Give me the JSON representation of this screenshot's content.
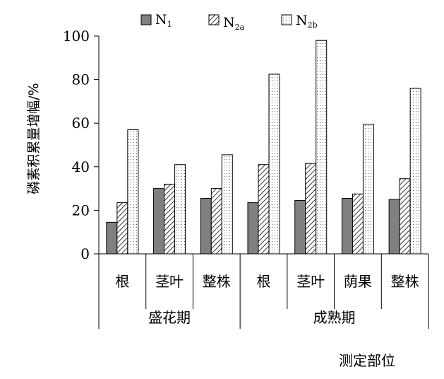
{
  "chart_data": {
    "type": "bar",
    "ylabel": "磷素积累量增幅/%",
    "xlabel": "测定部位",
    "ylim": [
      0,
      100
    ],
    "yticks": [
      "0",
      "20",
      "40",
      "60",
      "80",
      "100"
    ],
    "groups": [
      {
        "label": "盛花期",
        "categories": [
          "根",
          "茎叶",
          "整株"
        ]
      },
      {
        "label": "成熟期",
        "categories": [
          "根",
          "茎叶",
          "荫果",
          "整株"
        ]
      }
    ],
    "series": [
      {
        "name": "N",
        "sub": "1",
        "pattern": "solid-gray",
        "values": [
          14.5,
          30,
          25.5,
          23.5,
          24.5,
          25.5,
          25
        ]
      },
      {
        "name": "N",
        "sub": "2a",
        "pattern": "diagonal-hatch",
        "values": [
          23.5,
          32,
          30,
          41,
          41.5,
          27.5,
          34.5
        ]
      },
      {
        "name": "N",
        "sub": "2b",
        "pattern": "dotted",
        "values": [
          57,
          41,
          45.5,
          82.5,
          98,
          59.5,
          76
        ]
      }
    ],
    "legend": "top-center",
    "grid": false,
    "colors": {
      "solid": "#808080",
      "stroke": "#000000"
    }
  }
}
